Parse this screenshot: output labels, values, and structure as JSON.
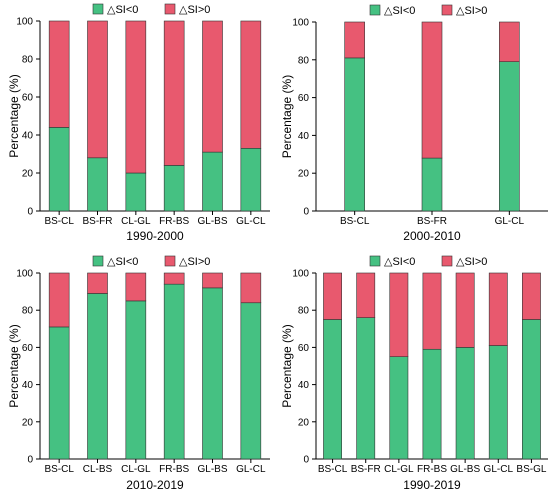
{
  "colors": {
    "neg": "#45c182",
    "pos": "#e8596e"
  },
  "chart_data": [
    {
      "type": "bar",
      "stacked": true,
      "title": "1990-2000",
      "ylabel": "Percentage (%)",
      "ylim": [
        0,
        100
      ],
      "yticks": [
        0,
        20,
        40,
        60,
        80,
        100
      ],
      "categories": [
        "BS-CL",
        "BS-FR",
        "CL-GL",
        "FR-BS",
        "GL-BS",
        "GL-CL"
      ],
      "series": [
        {
          "name": "△SI<0",
          "values": [
            44,
            28,
            20,
            24,
            31,
            33
          ]
        },
        {
          "name": "△SI>0",
          "values": [
            56,
            72,
            80,
            76,
            69,
            67
          ]
        }
      ],
      "legend": "top-center"
    },
    {
      "type": "bar",
      "stacked": true,
      "title": "2000-2010",
      "ylabel": "Percentage (%)",
      "ylim": [
        0,
        100
      ],
      "yticks": [
        0,
        20,
        40,
        60,
        80,
        100
      ],
      "categories": [
        "BS-CL",
        "BS-FR",
        "GL-CL"
      ],
      "series": [
        {
          "name": "△SI<0",
          "values": [
            81,
            28,
            79
          ]
        },
        {
          "name": "△SI>0",
          "values": [
            19,
            72,
            21
          ]
        }
      ],
      "legend": "top-center"
    },
    {
      "type": "bar",
      "stacked": true,
      "title": "2010-2019",
      "ylabel": "Percentage (%)",
      "ylim": [
        0,
        100
      ],
      "yticks": [
        0,
        20,
        40,
        60,
        80,
        100
      ],
      "categories": [
        "BS-CL",
        "CL-BS",
        "CL-GL",
        "FR-BS",
        "GL-BS",
        "GL-CL"
      ],
      "series": [
        {
          "name": "△SI<0",
          "values": [
            71,
            89,
            85,
            94,
            92,
            84
          ]
        },
        {
          "name": "△SI>0",
          "values": [
            29,
            11,
            15,
            6,
            8,
            16
          ]
        }
      ],
      "legend": "top-center"
    },
    {
      "type": "bar",
      "stacked": true,
      "title": "1990-2019",
      "ylabel": "Percentage (%)",
      "ylim": [
        0,
        100
      ],
      "yticks": [
        0,
        20,
        40,
        60,
        80,
        100
      ],
      "categories": [
        "BS-CL",
        "BS-FR",
        "CL-GL",
        "FR-BS",
        "GL-BS",
        "GL-CL",
        "BS-GL"
      ],
      "series": [
        {
          "name": "△SI<0",
          "values": [
            75,
            76,
            55,
            59,
            60,
            61,
            75
          ]
        },
        {
          "name": "△SI>0",
          "values": [
            25,
            24,
            45,
            41,
            40,
            39,
            25
          ]
        }
      ],
      "legend": "top-center"
    }
  ]
}
